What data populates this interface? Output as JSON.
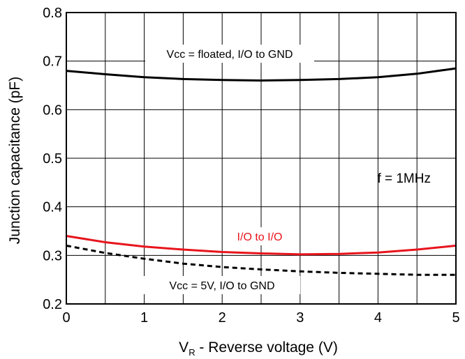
{
  "chart_data": {
    "type": "line",
    "xlabel": {
      "main": "V",
      "sub": "R",
      "rest": " - Reverse voltage (V)"
    },
    "ylabel": "Junction capacitance (pF)",
    "xlim": [
      0,
      5
    ],
    "ylim": [
      0.2,
      0.8
    ],
    "x_ticks": [
      "0",
      "1",
      "2",
      "3",
      "4",
      "5"
    ],
    "y_ticks": [
      "0.2",
      "0.3",
      "0.4",
      "0.5",
      "0.6",
      "0.7",
      "0.8"
    ],
    "x_minor_step": 0.5,
    "grid": true,
    "series": [
      {
        "name": "Vcc = floated, I/O to GND",
        "color": "#000000",
        "dash": "solid",
        "x": [
          0,
          0.5,
          1,
          1.5,
          2,
          2.5,
          3,
          3.5,
          4,
          4.5,
          5
        ],
        "y": [
          0.68,
          0.673,
          0.667,
          0.663,
          0.661,
          0.66,
          0.661,
          0.663,
          0.667,
          0.674,
          0.685
        ]
      },
      {
        "name": "I/O to I/O",
        "color": "#e8141c",
        "dash": "solid",
        "x": [
          0,
          0.5,
          1,
          1.5,
          2,
          2.5,
          3,
          3.5,
          4,
          4.5,
          5
        ],
        "y": [
          0.34,
          0.327,
          0.318,
          0.312,
          0.307,
          0.304,
          0.302,
          0.303,
          0.306,
          0.312,
          0.32
        ]
      },
      {
        "name": "Vcc = 5V, I/O to GND",
        "color": "#000000",
        "dash": "dashed",
        "x": [
          0,
          0.5,
          1,
          1.5,
          2,
          2.5,
          3,
          3.5,
          4,
          4.5,
          5
        ],
        "y": [
          0.32,
          0.305,
          0.293,
          0.283,
          0.276,
          0.271,
          0.267,
          0.264,
          0.262,
          0.26,
          0.26
        ]
      }
    ],
    "annotations": {
      "floated_label": "Vcc = floated, I/O to GND",
      "io_label": "I/O to I/O",
      "vcc5_label": "Vcc = 5V, I/O to GND",
      "freq_label": "f = 1MHz"
    }
  }
}
